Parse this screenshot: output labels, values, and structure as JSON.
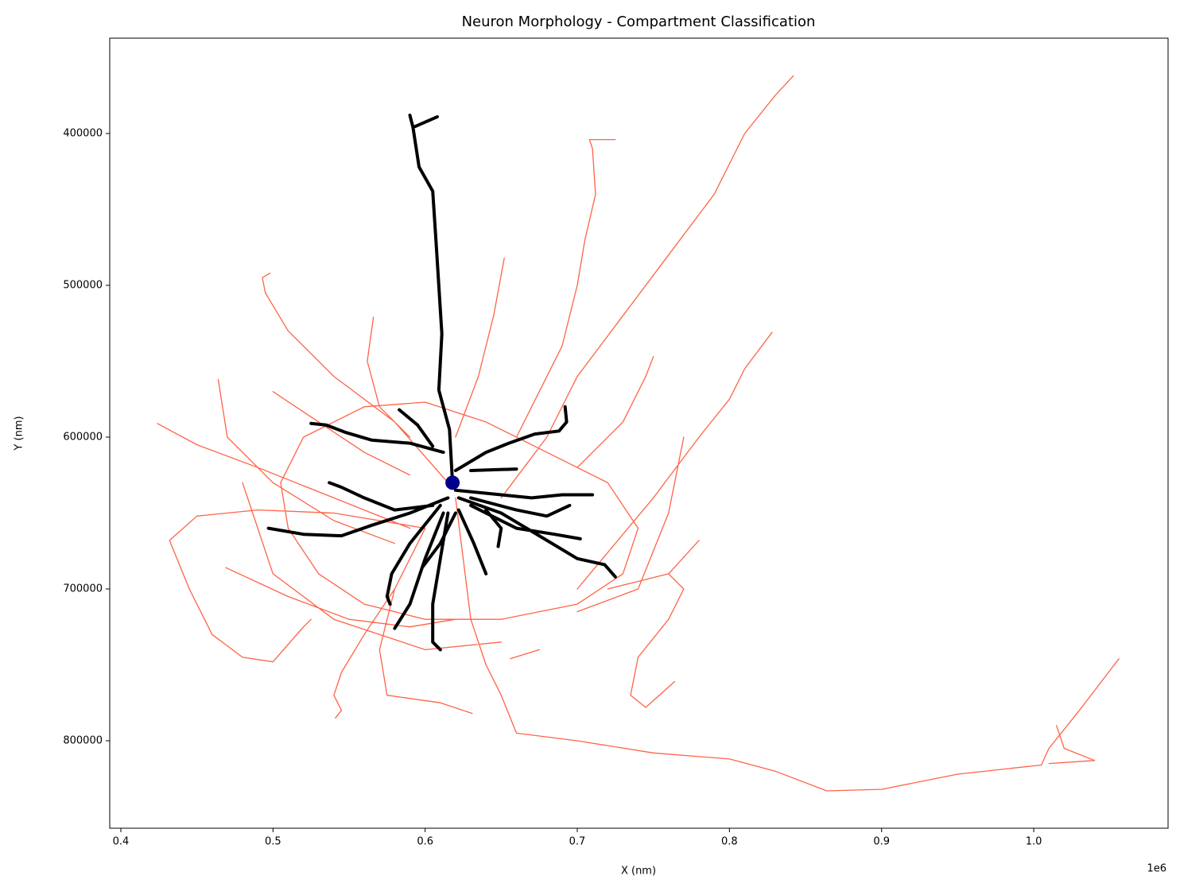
{
  "chart_data": {
    "type": "line",
    "title": "Neuron Morphology - Compartment Classification",
    "xlabel": "X (nm)",
    "ylabel": "Y (nm)",
    "x_offset_label": "1e6",
    "xlim": [
      392700,
      1088300
    ],
    "ylim": [
      857600,
      337200
    ],
    "xticks": [
      {
        "value": 400000,
        "label": "0.4"
      },
      {
        "value": 500000,
        "label": "0.5"
      },
      {
        "value": 600000,
        "label": "0.6"
      },
      {
        "value": 700000,
        "label": "0.7"
      },
      {
        "value": 800000,
        "label": "0.8"
      },
      {
        "value": 900000,
        "label": "0.9"
      },
      {
        "value": 1000000,
        "label": "1.0"
      }
    ],
    "yticks": [
      400000,
      500000,
      600000,
      700000,
      800000
    ],
    "y_inverted": true,
    "grid": false,
    "series": [
      {
        "color": "#ff6347",
        "mode": "lines",
        "width": 1.3,
        "x": [
          620000,
          625000,
          630000,
          640000,
          650000,
          660000,
          700000,
          750000,
          800000,
          830000,
          864000,
          900000,
          950000,
          1005000,
          1010000,
          1030000,
          1056000,
          null,
          1015000,
          1020000,
          1040000,
          1010000,
          null,
          650000,
          680000,
          700000,
          730000,
          760000,
          790000,
          810000,
          830000,
          842000,
          null,
          700000,
          750000,
          780000,
          800000,
          810000,
          828000,
          null,
          720000,
          760000,
          780000,
          null,
          760000,
          770000,
          760000,
          740000,
          735000,
          745000,
          764000,
          null,
          620000,
          635000,
          645000,
          652000,
          null,
          660000,
          690000,
          700000,
          705000,
          712000,
          710000,
          708000,
          725000,
          null,
          700000,
          730000,
          745000,
          750000,
          null,
          615000,
          580000,
          540000,
          510000,
          495000,
          493000,
          498000,
          null,
          590000,
          540000,
          490000,
          450000,
          424000,
          null,
          600000,
          540000,
          490000,
          450000,
          432000,
          445000,
          460000,
          480000,
          500000,
          520000,
          525000,
          null,
          464000,
          470000,
          500000,
          540000,
          580000,
          null,
          469000,
          510000,
          550000,
          590000,
          620000,
          null,
          600000,
          580000,
          560000,
          545000,
          540000,
          545000,
          541000,
          null,
          580000,
          570000,
          575000,
          610000,
          631000,
          null,
          656000,
          675000,
          null,
          520000,
          560000,
          600000,
          640000,
          680000,
          720000,
          740000,
          730000,
          700000,
          650000,
          600000,
          560000,
          530000,
          510000,
          505000,
          520000,
          null,
          770000,
          760000,
          740000,
          700000,
          null,
          480000,
          500000,
          540000,
          600000,
          650000,
          null,
          566000,
          562000,
          570000,
          590000,
          null,
          500000,
          530000,
          560000,
          590000
        ],
        "y": [
          640000,
          680000,
          720000,
          750000,
          770000,
          795000,
          800000,
          808000,
          812000,
          820000,
          833000,
          832000,
          822000,
          816000,
          805000,
          780000,
          746000,
          null,
          790000,
          805000,
          813000,
          815000,
          null,
          640000,
          600000,
          560000,
          520000,
          480000,
          440000,
          400000,
          375000,
          362000,
          null,
          700000,
          640000,
          600000,
          575000,
          555000,
          531000,
          null,
          700000,
          690000,
          668000,
          null,
          690000,
          700000,
          720000,
          745000,
          770000,
          778000,
          761000,
          null,
          600000,
          560000,
          520000,
          482000,
          null,
          600000,
          540000,
          500000,
          470000,
          440000,
          410000,
          404000,
          404000,
          null,
          620000,
          590000,
          560000,
          547000,
          null,
          630000,
          590000,
          560000,
          530000,
          505000,
          495000,
          492000,
          null,
          660000,
          640000,
          620000,
          605000,
          591000,
          null,
          660000,
          650000,
          648000,
          652000,
          668000,
          700000,
          730000,
          745000,
          748000,
          725000,
          720000,
          null,
          562000,
          600000,
          630000,
          655000,
          670000,
          null,
          686000,
          705000,
          720000,
          725000,
          720000,
          null,
          660000,
          700000,
          730000,
          755000,
          770000,
          780000,
          785000,
          null,
          700000,
          740000,
          770000,
          775000,
          782000,
          null,
          746000,
          740000,
          null,
          600000,
          580000,
          577000,
          590000,
          610000,
          630000,
          660000,
          690000,
          710000,
          720000,
          720000,
          710000,
          690000,
          660000,
          630000,
          600000,
          null,
          600000,
          650000,
          700000,
          715000,
          null,
          630000,
          690000,
          720000,
          740000,
          735000,
          null,
          521000,
          550000,
          580000,
          600000,
          null,
          570000,
          590000,
          610000,
          625000
        ]
      },
      {
        "color": "#000000",
        "mode": "lines",
        "width": 4,
        "x": [
          618000,
          616000,
          609000,
          611000,
          607000,
          605000,
          596000,
          592000,
          590000,
          null,
          592000,
          608000,
          null,
          612000,
          590000,
          565000,
          548000,
          535000,
          525000,
          null,
          605000,
          595000,
          583000,
          null,
          620000,
          640000,
          655000,
          672000,
          688000,
          693000,
          692000,
          null,
          630000,
          660000,
          null,
          620000,
          650000,
          670000,
          690000,
          710000,
          null,
          622000,
          650000,
          675000,
          700000,
          718000,
          725000,
          null,
          630000,
          660000,
          680000,
          695000,
          null,
          630000,
          660000,
          685000,
          702000,
          null,
          640000,
          650000,
          648000,
          null,
          615000,
          590000,
          565000,
          545000,
          520000,
          497000,
          null,
          605000,
          580000,
          560000,
          545000,
          537000,
          null,
          610000,
          590000,
          578000,
          575000,
          577000,
          null,
          612000,
          600000,
          590000,
          580000,
          null,
          615000,
          610000,
          605000,
          605000,
          610000,
          null,
          620000,
          610000,
          598000,
          null,
          622000,
          632000,
          640000
        ],
        "y": [
          630000,
          595000,
          569000,
          532000,
          469000,
          438000,
          422000,
          396000,
          388000,
          null,
          396000,
          389000,
          null,
          610000,
          604000,
          602000,
          597000,
          592000,
          591000,
          null,
          606000,
          592000,
          582000,
          null,
          622000,
          610000,
          604000,
          598000,
          596000,
          590000,
          580000,
          null,
          622000,
          621000,
          null,
          635000,
          638000,
          640000,
          638000,
          638000,
          null,
          640000,
          650000,
          665000,
          680000,
          684000,
          692000,
          null,
          640000,
          648000,
          652000,
          645000,
          null,
          645000,
          660000,
          664000,
          667000,
          null,
          648000,
          660000,
          672000,
          null,
          640000,
          650000,
          658000,
          665000,
          664000,
          660000,
          null,
          645000,
          648000,
          640000,
          633000,
          630000,
          null,
          645000,
          670000,
          690000,
          705000,
          710000,
          null,
          650000,
          680000,
          710000,
          726000,
          null,
          650000,
          680000,
          710000,
          735000,
          740000,
          null,
          650000,
          670000,
          686000,
          null,
          648000,
          670000,
          690000
        ]
      },
      {
        "color": "#00008b",
        "mode": "markers",
        "size": 9,
        "x": [
          618000
        ],
        "y": [
          630000
        ]
      }
    ]
  }
}
